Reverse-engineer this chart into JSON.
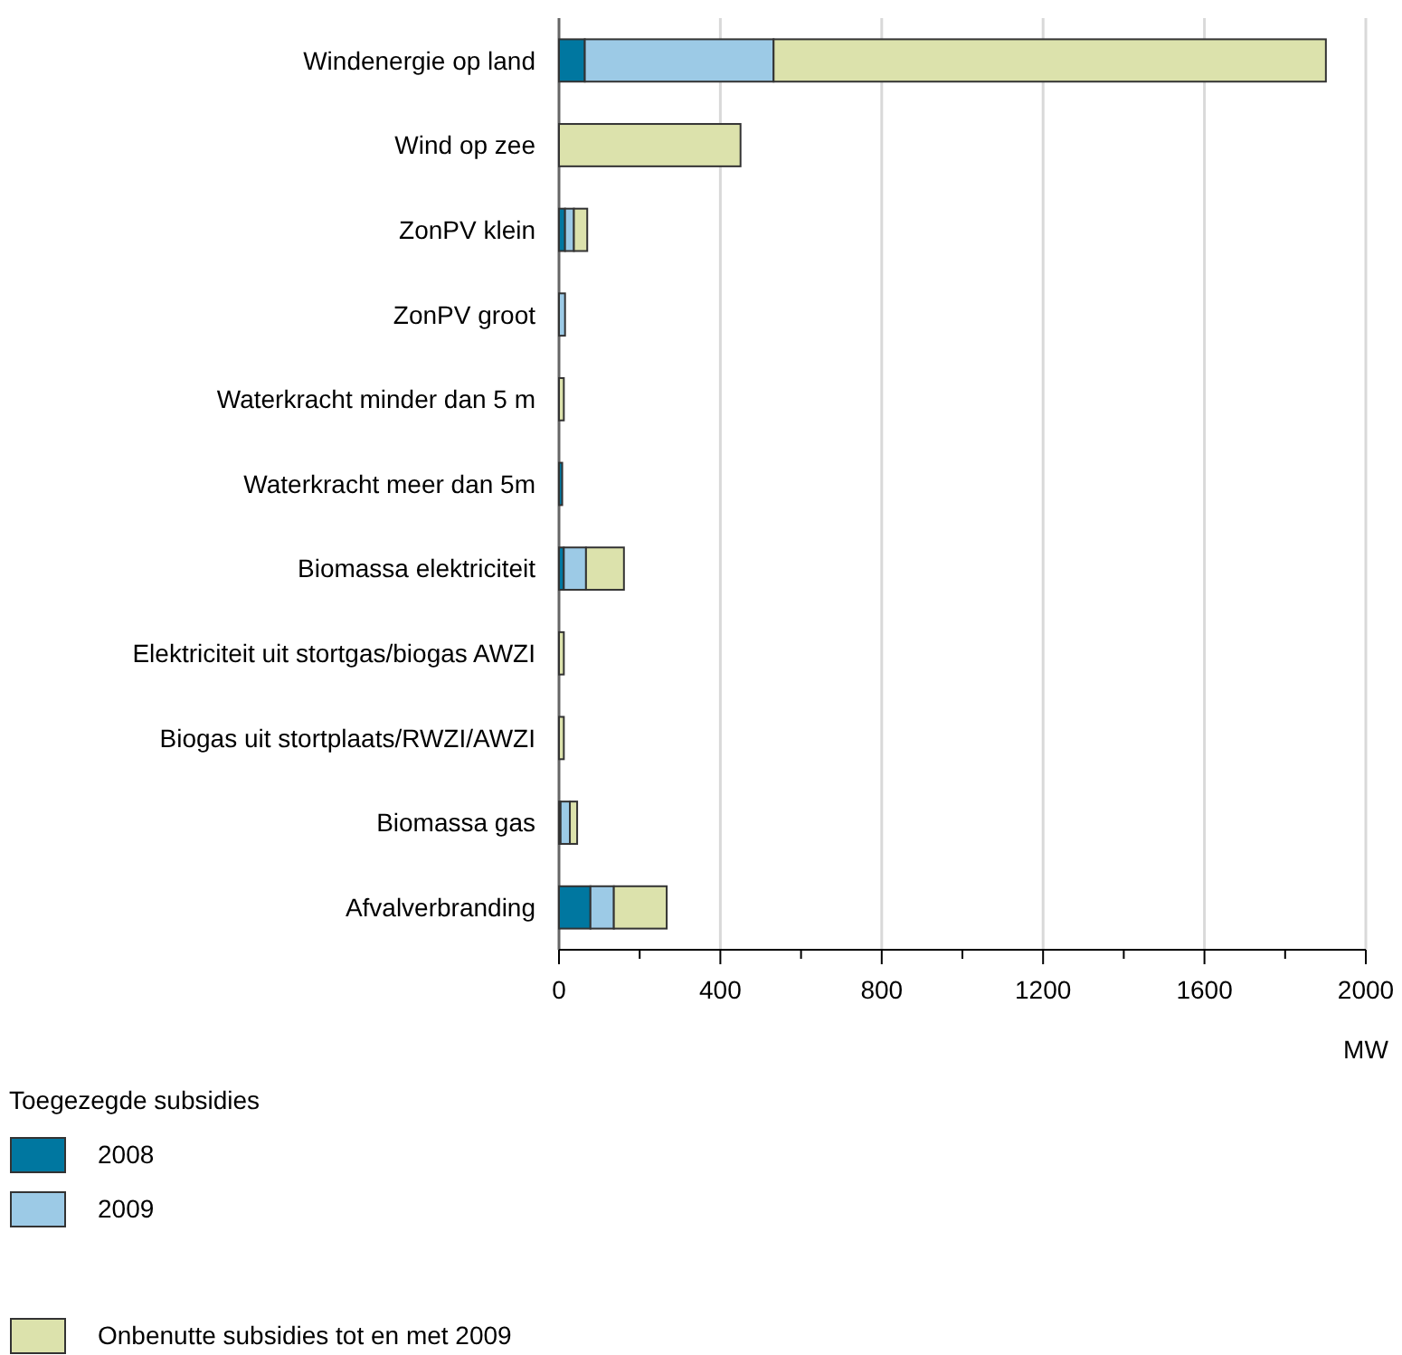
{
  "chart_data": {
    "type": "bar",
    "orientation": "horizontal",
    "stacked": true,
    "categories": [
      "Windenergie op land",
      "Wind op zee",
      "ZonPV klein",
      "ZonPV groot",
      "Waterkracht minder dan 5 m",
      "Waterkracht meer dan 5m",
      "Biomassa elektriciteit",
      "Elektriciteit uit stortgas/biogas AWZI",
      "Biogas uit stortplaats/RWZI/AWZI",
      "Biomassa gas",
      "Afvalverbranding"
    ],
    "series": [
      {
        "name": "2008",
        "color": "#0077a0",
        "values": [
          64,
          null,
          15,
          null,
          null,
          8,
          12,
          null,
          null,
          4,
          78
        ]
      },
      {
        "name": "2009",
        "color": "#9ccae6",
        "values": [
          468,
          null,
          22,
          15,
          null,
          null,
          55,
          null,
          null,
          23,
          58
        ]
      },
      {
        "name": "Onbenutte subsidies tot en met 2009",
        "color": "#dce2ac",
        "values": [
          1369,
          450,
          33,
          null,
          12,
          null,
          94,
          12,
          12,
          18,
          131
        ]
      }
    ],
    "xlim": [
      0,
      2000
    ],
    "xticks": [
      0,
      {
        "value": 200,
        "label": null
      },
      400,
      {
        "value": 600,
        "label": null
      },
      800,
      {
        "value": 1000,
        "label": null
      },
      1200,
      {
        "value": 1400,
        "label": null
      },
      1600,
      {
        "value": 1800,
        "label": null
      },
      2000
    ],
    "xlabel": "MW",
    "legend_title": "Toegezegde subsidies",
    "legend": "bottom",
    "grid": "x"
  }
}
